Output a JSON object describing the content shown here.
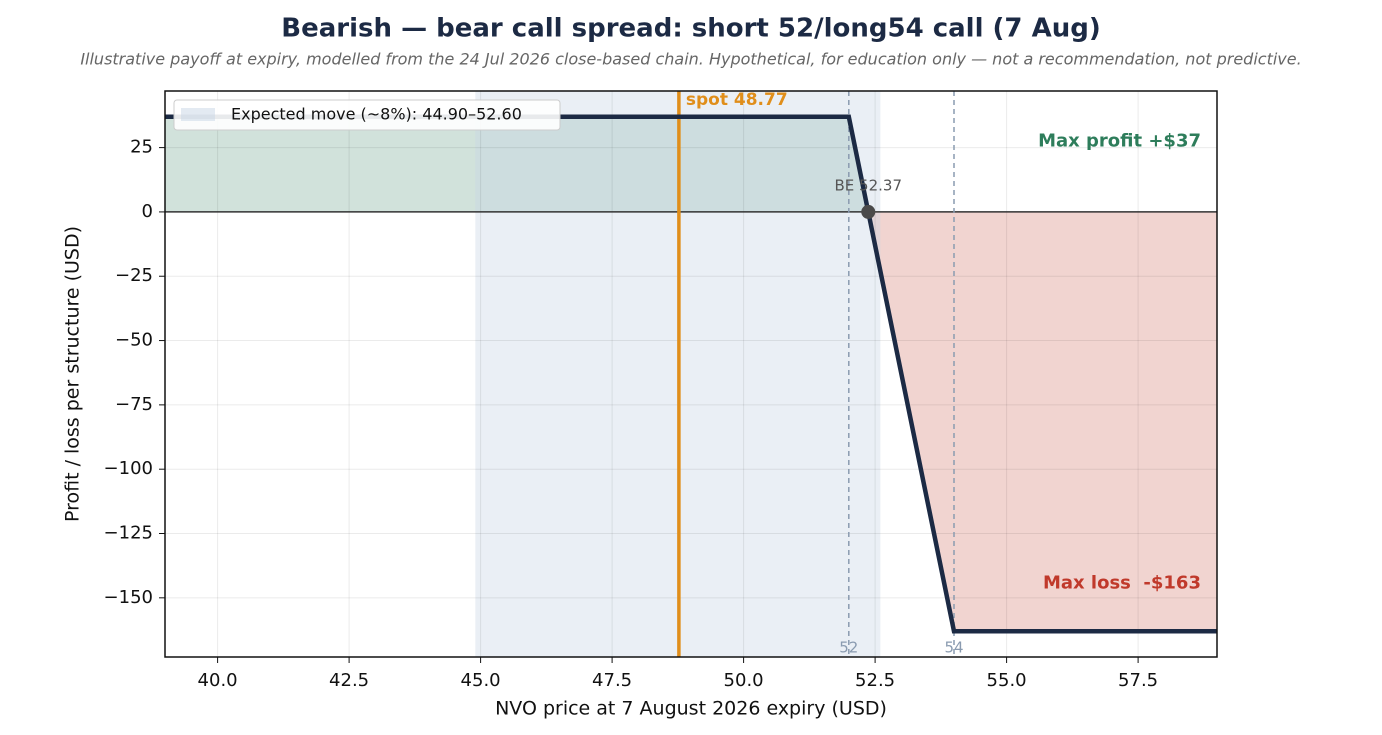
{
  "chart_data": {
    "type": "line",
    "title": "Bearish — bear call spread: short 52/long54 call (7 Aug)",
    "subtitle": "Illustrative payoff at expiry, modelled from the 24 Jul 2026 close-based chain. Hypothetical, for education only — not a recommendation, not predictive.",
    "xlabel": "NVO price at 7 August 2026 expiry (USD)",
    "ylabel": "Profit / loss per structure (USD)",
    "x": [
      39,
      52,
      54,
      59
    ],
    "values": [
      37,
      37,
      -163,
      -163
    ],
    "color": "#1c2a44",
    "xlim": [
      39,
      59
    ],
    "ylim": [
      -173,
      47
    ],
    "xticks": [
      {
        "value": 40,
        "label": "40.0"
      },
      42.5,
      {
        "value": 45,
        "label": "45.0"
      },
      47.5,
      {
        "value": 50,
        "label": "50.0"
      },
      52.5,
      {
        "value": 55,
        "label": "55.0"
      },
      57.5
    ],
    "yticks": [
      {
        "value": -150,
        "label": "−150"
      },
      {
        "value": -125,
        "label": "−125"
      },
      {
        "value": -100,
        "label": "−100"
      },
      {
        "value": -75,
        "label": "−75"
      },
      {
        "value": -50,
        "label": "−50"
      },
      {
        "value": -25,
        "label": "−25"
      },
      0,
      25
    ],
    "grid": true,
    "legend": "upper left",
    "expected_move": {
      "label": "Expected move (~8%): 44.90–52.60",
      "range": [
        44.9,
        52.6
      ],
      "color": "#c8d6e5"
    },
    "spot": {
      "value": 48.77,
      "label": "spot 48.77",
      "color": "#e08e1a"
    },
    "breakeven": {
      "value": 52.37,
      "label": "BE 52.37"
    },
    "strikes": [
      52,
      54
    ],
    "max_profit": {
      "value": 37,
      "label": "Max profit +$37",
      "color": "#2e7d5b"
    },
    "max_loss": {
      "value": -163,
      "label": "Max loss  -$163",
      "color": "#c0392b"
    }
  }
}
